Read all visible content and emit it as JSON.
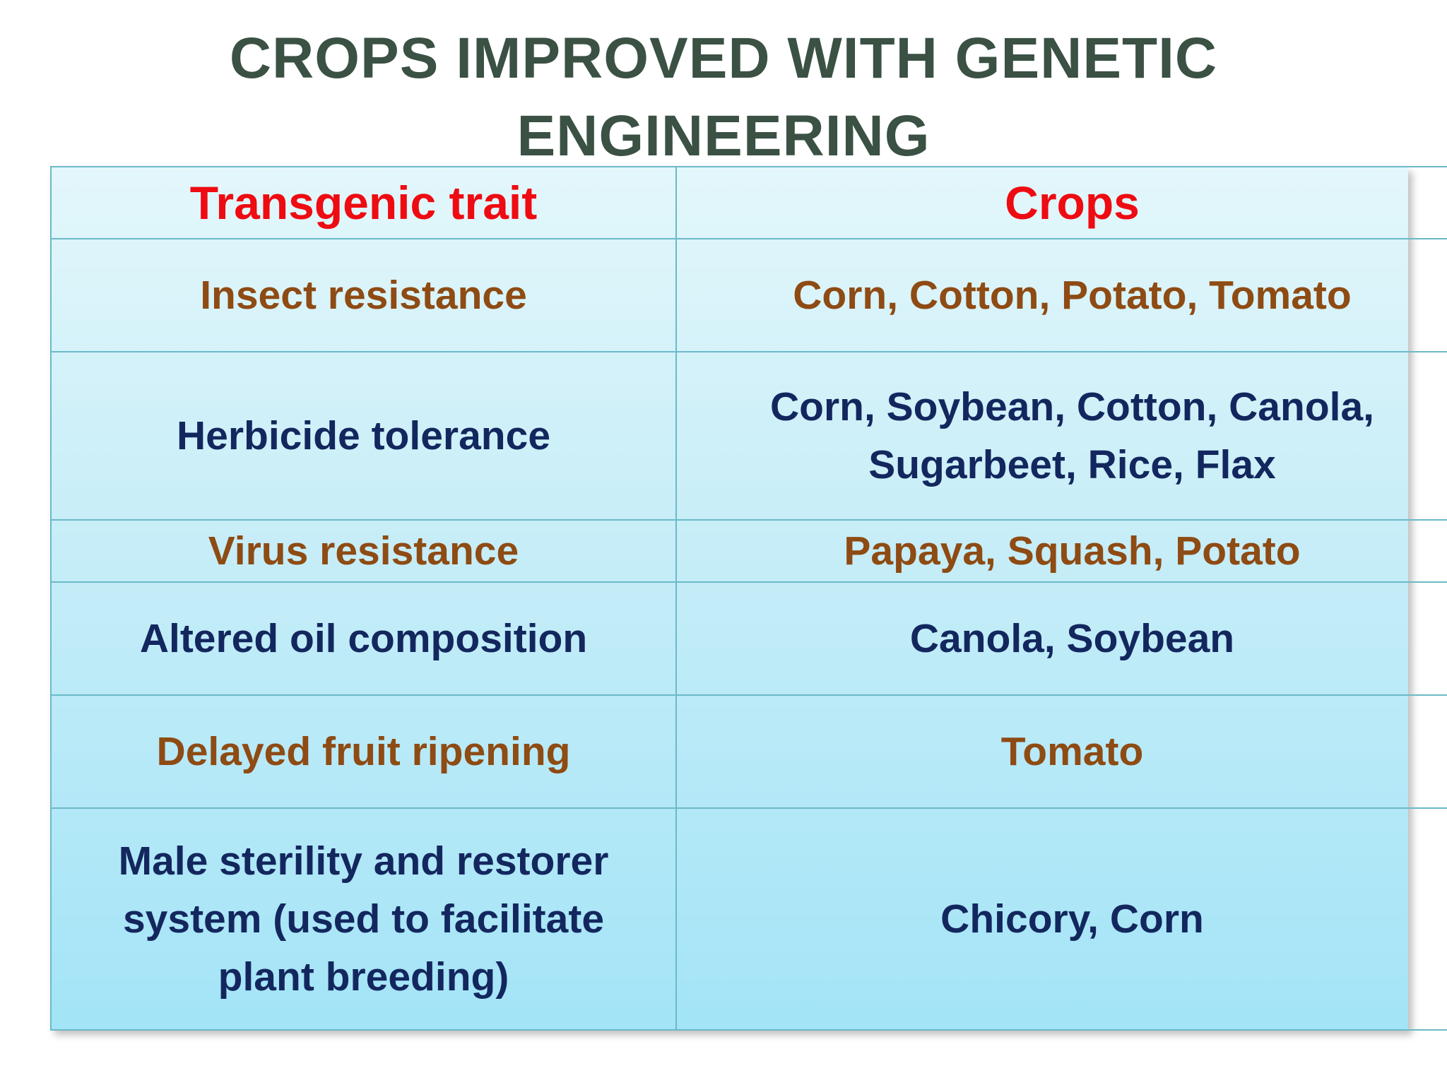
{
  "title": {
    "line1": "CROPS IMPROVED WITH GENETIC",
    "line2": "ENGINEERING"
  },
  "colors": {
    "title": "#3a5144",
    "header": "#ee0b12",
    "brown_text": "#8e4b13",
    "navy_text": "#13275e",
    "table_top": "#e3f7fb",
    "table_bottom": "#a3e4f7",
    "border": "#6cb9c8"
  },
  "table": {
    "headers": [
      "Transgenic trait",
      "Crops"
    ],
    "rows": [
      {
        "trait": "Insect resistance",
        "crops": [
          "Corn, Cotton, Potato, Tomato"
        ]
      },
      {
        "trait": "Herbicide tolerance",
        "crops": [
          "Corn, Soybean, Cotton, Canola,",
          "Sugarbeet, Rice, Flax"
        ]
      },
      {
        "trait": "Virus resistance",
        "crops": [
          "Papaya, Squash, Potato"
        ]
      },
      {
        "trait": "Altered oil composition",
        "crops": [
          "Canola, Soybean"
        ]
      },
      {
        "trait": "Delayed fruit ripening",
        "crops": [
          "Tomato"
        ]
      },
      {
        "trait": [
          "Male sterility and restorer",
          "system (used to facilitate",
          "plant breeding)"
        ],
        "crops": [
          "Chicory, Corn"
        ]
      }
    ]
  }
}
